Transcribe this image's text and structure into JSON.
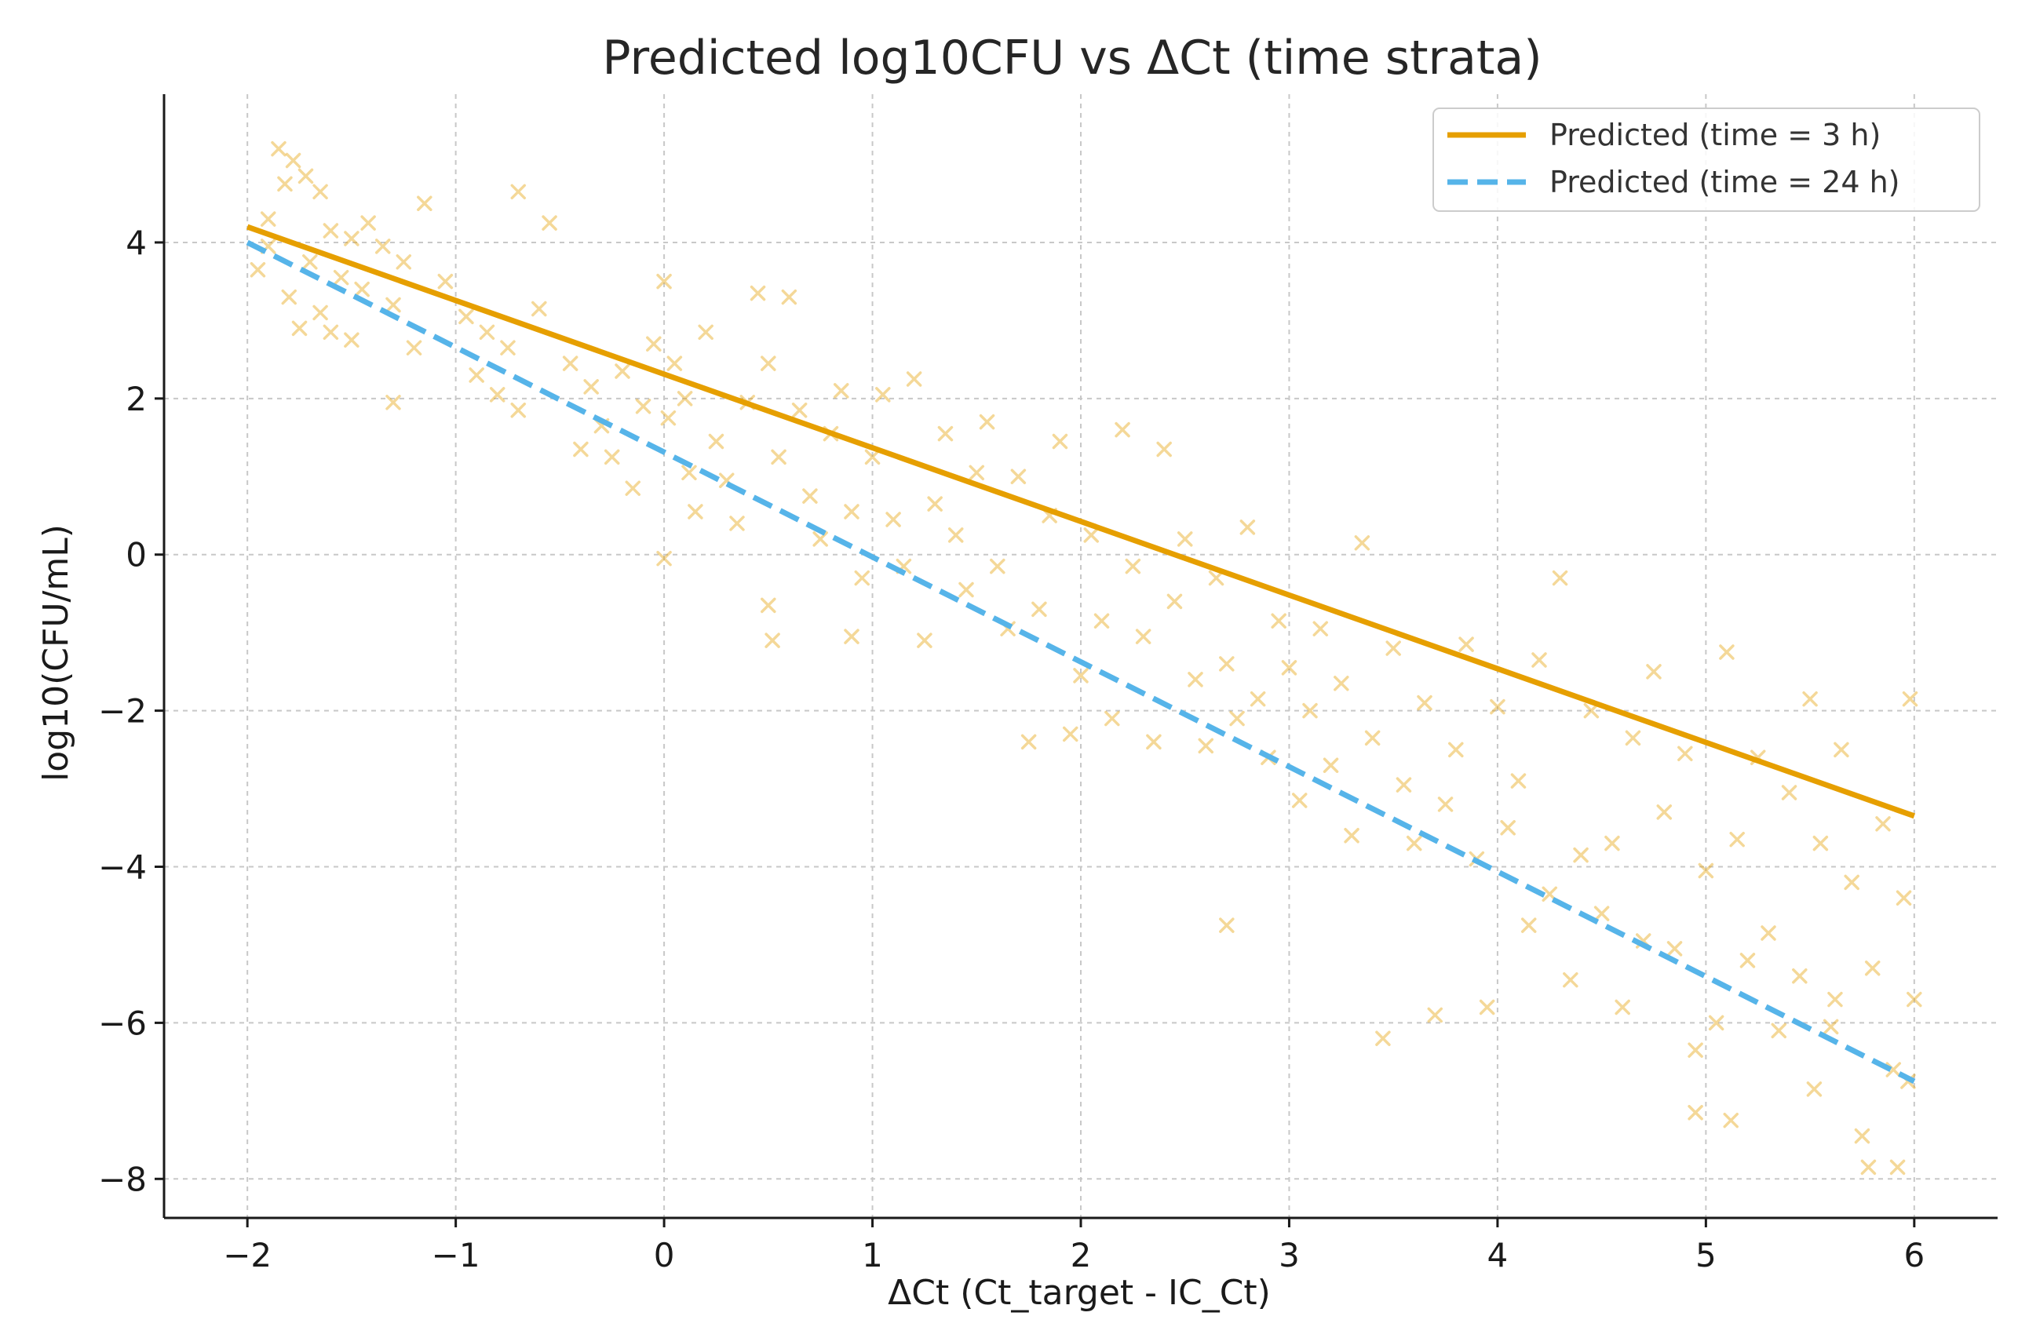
{
  "chart_data": {
    "type": "scatter",
    "title": "Predicted log10CFU vs ΔCt (time strata)",
    "xlabel": "ΔCt (Ct_target - IC_Ct)",
    "ylabel": "log10(CFU/mL)",
    "xlim": [
      -2.4,
      6.4
    ],
    "ylim": [
      -8.5,
      5.9
    ],
    "xticks": [
      -2,
      -1,
      0,
      1,
      2,
      3,
      4,
      5,
      6
    ],
    "xtick_labels": [
      "−2",
      "−1",
      "0",
      "1",
      "2",
      "3",
      "4",
      "5",
      "6"
    ],
    "yticks": [
      -8,
      -6,
      -4,
      -2,
      0,
      2,
      4
    ],
    "ytick_labels": [
      "−8",
      "−6",
      "−4",
      "−2",
      "0",
      "2",
      "4"
    ],
    "grid": true,
    "legend_position": "top-right",
    "series": [
      {
        "name": "Predicted (time = 3 h)",
        "kind": "line",
        "style": "solid",
        "color": "#E69F00",
        "x": [
          -2,
          6
        ],
        "y": [
          4.2,
          -3.35
        ]
      },
      {
        "name": "Predicted (time = 24 h)",
        "kind": "line",
        "style": "dashed",
        "color": "#56B4E9",
        "x": [
          -2,
          6
        ],
        "y": [
          4.0,
          -6.75
        ]
      }
    ],
    "observations": {
      "name": "observed",
      "marker": "x",
      "color": "#E69F00",
      "opacity": 0.4,
      "points": [
        [
          -1.85,
          5.2
        ],
        [
          -1.78,
          5.05
        ],
        [
          -1.72,
          4.85
        ],
        [
          -1.82,
          4.75
        ],
        [
          -1.65,
          4.65
        ],
        [
          -1.9,
          4.3
        ],
        [
          -1.6,
          4.15
        ],
        [
          -1.5,
          4.05
        ],
        [
          -1.42,
          4.25
        ],
        [
          -1.35,
          3.95
        ],
        [
          -1.7,
          3.75
        ],
        [
          -1.55,
          3.55
        ],
        [
          -1.95,
          3.65
        ],
        [
          -1.8,
          3.3
        ],
        [
          -1.65,
          3.1
        ],
        [
          -1.45,
          3.4
        ],
        [
          -1.3,
          3.2
        ],
        [
          -1.6,
          2.85
        ],
        [
          -1.75,
          2.9
        ],
        [
          -1.5,
          2.75
        ],
        [
          -1.9,
          3.95
        ],
        [
          -1.25,
          3.75
        ],
        [
          -1.15,
          4.5
        ],
        [
          -1.05,
          3.5
        ],
        [
          -1.2,
          2.65
        ],
        [
          -1.3,
          1.95
        ],
        [
          -0.95,
          3.05
        ],
        [
          -0.85,
          2.85
        ],
        [
          -0.9,
          2.3
        ],
        [
          -0.75,
          2.65
        ],
        [
          -0.8,
          2.05
        ],
        [
          -0.7,
          1.85
        ],
        [
          -0.6,
          3.15
        ],
        [
          -0.55,
          4.25
        ],
        [
          -0.7,
          4.65
        ],
        [
          -0.45,
          2.45
        ],
        [
          -0.35,
          2.15
        ],
        [
          -0.3,
          1.65
        ],
        [
          -0.4,
          1.35
        ],
        [
          -0.2,
          2.35
        ],
        [
          -0.25,
          1.25
        ],
        [
          -0.15,
          0.85
        ],
        [
          -0.1,
          1.9
        ],
        [
          -0.05,
          2.7
        ],
        [
          0.0,
          3.5
        ],
        [
          0.05,
          2.45
        ],
        [
          0.02,
          1.75
        ],
        [
          0.1,
          2.0
        ],
        [
          0.12,
          1.05
        ],
        [
          0.0,
          -0.05
        ],
        [
          0.15,
          0.55
        ],
        [
          0.2,
          2.85
        ],
        [
          0.25,
          1.45
        ],
        [
          0.3,
          0.95
        ],
        [
          0.35,
          0.4
        ],
        [
          0.4,
          1.95
        ],
        [
          0.45,
          3.35
        ],
        [
          0.5,
          2.45
        ],
        [
          0.55,
          1.25
        ],
        [
          0.6,
          3.3
        ],
        [
          0.5,
          -0.65
        ],
        [
          0.52,
          -1.1
        ],
        [
          0.65,
          1.85
        ],
        [
          0.7,
          0.75
        ],
        [
          0.75,
          0.2
        ],
        [
          0.8,
          1.55
        ],
        [
          0.85,
          2.1
        ],
        [
          0.9,
          0.55
        ],
        [
          0.95,
          -0.3
        ],
        [
          0.9,
          -1.05
        ],
        [
          1.0,
          1.25
        ],
        [
          1.05,
          2.05
        ],
        [
          1.1,
          0.45
        ],
        [
          1.15,
          -0.15
        ],
        [
          1.2,
          2.25
        ],
        [
          1.25,
          -1.1
        ],
        [
          1.3,
          0.65
        ],
        [
          1.35,
          1.55
        ],
        [
          1.4,
          0.25
        ],
        [
          1.45,
          -0.45
        ],
        [
          1.5,
          1.05
        ],
        [
          1.55,
          1.7
        ],
        [
          1.6,
          -0.15
        ],
        [
          1.65,
          -0.95
        ],
        [
          1.7,
          1.0
        ],
        [
          1.75,
          -2.4
        ],
        [
          1.8,
          -0.7
        ],
        [
          1.85,
          0.5
        ],
        [
          1.9,
          1.45
        ],
        [
          1.95,
          -2.3
        ],
        [
          2.0,
          -1.55
        ],
        [
          2.05,
          0.25
        ],
        [
          2.1,
          -0.85
        ],
        [
          2.15,
          -2.1
        ],
        [
          2.2,
          1.6
        ],
        [
          2.25,
          -0.15
        ],
        [
          2.3,
          -1.05
        ],
        [
          2.35,
          -2.4
        ],
        [
          2.4,
          1.35
        ],
        [
          2.45,
          -0.6
        ],
        [
          2.5,
          0.2
        ],
        [
          2.55,
          -1.6
        ],
        [
          2.6,
          -2.45
        ],
        [
          2.65,
          -0.3
        ],
        [
          2.7,
          -1.4
        ],
        [
          2.75,
          -2.1
        ],
        [
          2.7,
          -4.75
        ],
        [
          2.8,
          0.35
        ],
        [
          2.85,
          -1.85
        ],
        [
          2.9,
          -2.6
        ],
        [
          2.95,
          -0.85
        ],
        [
          3.0,
          -1.45
        ],
        [
          3.05,
          -3.15
        ],
        [
          3.1,
          -2.0
        ],
        [
          3.15,
          -0.95
        ],
        [
          3.2,
          -2.7
        ],
        [
          3.25,
          -1.65
        ],
        [
          3.3,
          -3.6
        ],
        [
          3.35,
          0.15
        ],
        [
          3.4,
          -2.35
        ],
        [
          3.45,
          -6.2
        ],
        [
          3.5,
          -1.2
        ],
        [
          3.55,
          -2.95
        ],
        [
          3.6,
          -3.7
        ],
        [
          3.65,
          -1.9
        ],
        [
          3.7,
          -5.9
        ],
        [
          3.75,
          -3.2
        ],
        [
          3.8,
          -2.5
        ],
        [
          3.85,
          -1.15
        ],
        [
          3.9,
          -3.9
        ],
        [
          3.95,
          -5.8
        ],
        [
          4.0,
          -1.95
        ],
        [
          4.05,
          -3.5
        ],
        [
          4.1,
          -2.9
        ],
        [
          4.15,
          -4.75
        ],
        [
          4.2,
          -1.35
        ],
        [
          4.25,
          -4.35
        ],
        [
          4.3,
          -0.3
        ],
        [
          4.35,
          -5.45
        ],
        [
          4.4,
          -3.85
        ],
        [
          4.45,
          -2.0
        ],
        [
          4.5,
          -4.6
        ],
        [
          4.55,
          -3.7
        ],
        [
          4.6,
          -5.8
        ],
        [
          4.65,
          -2.35
        ],
        [
          4.7,
          -4.95
        ],
        [
          4.75,
          -1.5
        ],
        [
          4.8,
          -3.3
        ],
        [
          4.85,
          -5.05
        ],
        [
          4.9,
          -2.55
        ],
        [
          4.95,
          -6.35
        ],
        [
          4.95,
          -7.15
        ],
        [
          5.0,
          -4.05
        ],
        [
          5.05,
          -6.0
        ],
        [
          5.1,
          -1.25
        ],
        [
          5.12,
          -7.25
        ],
        [
          5.15,
          -3.65
        ],
        [
          5.2,
          -5.2
        ],
        [
          5.25,
          -2.6
        ],
        [
          5.3,
          -4.85
        ],
        [
          5.35,
          -6.1
        ],
        [
          5.4,
          -3.05
        ],
        [
          5.45,
          -5.4
        ],
        [
          5.5,
          -1.85
        ],
        [
          5.52,
          -6.85
        ],
        [
          5.55,
          -3.7
        ],
        [
          5.6,
          -6.05
        ],
        [
          5.62,
          -5.7
        ],
        [
          5.65,
          -2.5
        ],
        [
          5.7,
          -4.2
        ],
        [
          5.75,
          -7.45
        ],
        [
          5.78,
          -7.85
        ],
        [
          5.8,
          -5.3
        ],
        [
          5.85,
          -3.45
        ],
        [
          5.9,
          -6.6
        ],
        [
          5.92,
          -7.85
        ],
        [
          5.95,
          -4.4
        ],
        [
          5.97,
          -6.75
        ],
        [
          5.98,
          -1.85
        ],
        [
          6.0,
          -5.7
        ]
      ]
    }
  }
}
